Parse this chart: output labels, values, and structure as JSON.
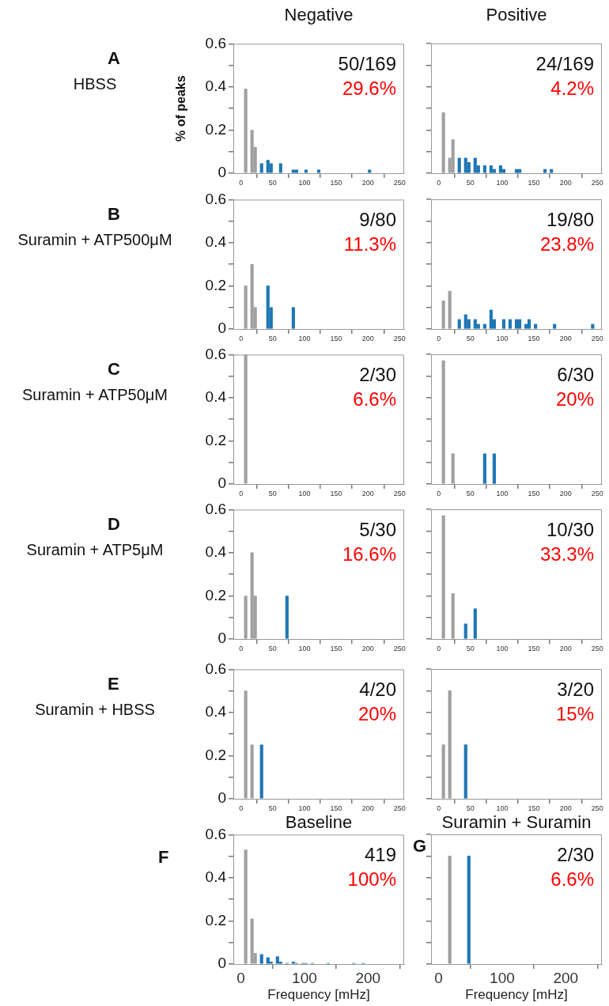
{
  "chart_data": [
    {
      "type": "bar",
      "title": "Negative",
      "subtitle": "A",
      "ylabel": "% of peaks",
      "annotations": [
        "HBSS",
        "50/169",
        "29.6%"
      ],
      "x": [
        7.5,
        17.5,
        22.5,
        32.5,
        42.5,
        47.5,
        62.5,
        82.5,
        87.5,
        102.5,
        122.5,
        202.5
      ],
      "values": [
        0.39,
        0.2,
        0.12,
        0.045,
        0.06,
        0.045,
        0.045,
        0.015,
        0.015,
        0.015,
        0.015,
        0.015
      ],
      "colors": [
        "#a0a0a0",
        "#a0a0a0",
        "#a0a0a0",
        "#1f77b4",
        "#1f77b4",
        "#1f77b4",
        "#1f77b4",
        "#1f77b4",
        "#1f77b4",
        "#1f77b4",
        "#1f77b4",
        "#1f77b4"
      ],
      "xlim": [
        -12,
        257
      ],
      "xticks": [
        0,
        50,
        100,
        150,
        200,
        250
      ],
      "ylim": [
        0,
        0.6
      ],
      "yticks": [
        0,
        {
          "value": 0.1,
          "label": null
        },
        0.2,
        {
          "value": 0.3,
          "label": null
        },
        0.4,
        {
          "value": 0.5,
          "label": null
        },
        0.6
      ]
    },
    {
      "type": "bar",
      "title": "Positive",
      "annotations": [
        "24/169",
        "4.2%"
      ],
      "x": [
        7.5,
        17.5,
        22.5,
        32.5,
        42.5,
        47.5,
        57.5,
        62.5,
        72.5,
        82.5,
        87.5,
        97.5,
        102.5,
        122.5,
        127.5,
        167.5,
        177.5
      ],
      "values": [
        0.28,
        0.07,
        0.155,
        0.07,
        0.07,
        0.05,
        0.07,
        0.035,
        0.035,
        0.035,
        0.018,
        0.035,
        0.018,
        0.018,
        0.018,
        0.018,
        0.018
      ],
      "colors": [
        "#a0a0a0",
        "#a0a0a0",
        "#a0a0a0",
        "#1f77b4",
        "#1f77b4",
        "#1f77b4",
        "#1f77b4",
        "#1f77b4",
        "#1f77b4",
        "#1f77b4",
        "#1f77b4",
        "#1f77b4",
        "#1f77b4",
        "#1f77b4",
        "#1f77b4",
        "#1f77b4",
        "#1f77b4"
      ],
      "xlim": [
        -12,
        257
      ],
      "xticks": [
        0,
        50,
        100,
        150,
        200,
        250
      ],
      "ylim": [
        0,
        0.6
      ],
      "yticks": [
        0,
        {
          "value": 0.1,
          "label": null
        },
        0.2,
        {
          "value": 0.3,
          "label": null
        },
        0.4,
        {
          "value": 0.5,
          "label": null
        },
        0.6
      ],
      "tick_labels": "x"
    },
    {
      "type": "bar",
      "subtitle": "B",
      "annotations": [
        "Suramin + ATP500μM",
        "9/80",
        "11.3%"
      ],
      "x": [
        7.5,
        17.5,
        22.5,
        42.5,
        47.5,
        82.5
      ],
      "values": [
        0.2,
        0.3,
        0.1,
        0.2,
        0.1,
        0.1
      ],
      "colors": [
        "#a0a0a0",
        "#a0a0a0",
        "#a0a0a0",
        "#1f77b4",
        "#1f77b4",
        "#1f77b4"
      ],
      "xlim": [
        -12,
        257
      ],
      "xticks": [
        0,
        50,
        100,
        150,
        200,
        250
      ],
      "ylim": [
        0,
        0.6
      ],
      "yticks": [
        0,
        {
          "value": 0.1,
          "label": null
        },
        0.2,
        {
          "value": 0.3,
          "label": null
        },
        0.4,
        {
          "value": 0.5,
          "label": null
        },
        0.6
      ]
    },
    {
      "type": "bar",
      "annotations": [
        "19/80",
        "23.8%"
      ],
      "x": [
        7.5,
        17.5,
        32.5,
        42.5,
        47.5,
        57.5,
        62.5,
        72.5,
        82.5,
        87.5,
        102.5,
        112.5,
        122.5,
        127.5,
        137.5,
        142.5,
        152.5,
        182.5,
        242.5
      ],
      "values": [
        0.13,
        0.175,
        0.044,
        0.066,
        0.044,
        0.044,
        0.022,
        0.022,
        0.088,
        0.044,
        0.044,
        0.044,
        0.044,
        0.044,
        0.022,
        0.044,
        0.022,
        0.022,
        0.022
      ],
      "colors": [
        "#a0a0a0",
        "#a0a0a0",
        "#1f77b4",
        "#1f77b4",
        "#1f77b4",
        "#1f77b4",
        "#1f77b4",
        "#1f77b4",
        "#1f77b4",
        "#1f77b4",
        "#1f77b4",
        "#1f77b4",
        "#1f77b4",
        "#1f77b4",
        "#1f77b4",
        "#1f77b4",
        "#1f77b4",
        "#1f77b4",
        "#1f77b4"
      ],
      "xlim": [
        -12,
        257
      ],
      "xticks": [
        0,
        50,
        100,
        150,
        200,
        250
      ],
      "ylim": [
        0,
        0.6
      ],
      "yticks": [
        0,
        {
          "value": 0.1,
          "label": null
        },
        0.2,
        {
          "value": 0.3,
          "label": null
        },
        0.4,
        {
          "value": 0.5,
          "label": null
        },
        0.6
      ],
      "tick_labels": "x"
    },
    {
      "type": "bar",
      "subtitle": "C",
      "annotations": [
        "Suramin + ATP50μM",
        "2/30",
        "6.6%"
      ],
      "x": [
        7.5
      ],
      "values": [
        0.6
      ],
      "colors": [
        "#a0a0a0"
      ],
      "xlim": [
        -12,
        257
      ],
      "xticks": [
        0,
        50,
        100,
        150,
        200,
        250
      ],
      "ylim": [
        0,
        0.6
      ],
      "yticks": [
        0,
        {
          "value": 0.1,
          "label": null
        },
        0.2,
        {
          "value": 0.3,
          "label": null
        },
        0.4,
        {
          "value": 0.5,
          "label": null
        },
        0.6
      ]
    },
    {
      "type": "bar",
      "annotations": [
        "6/30",
        "20%"
      ],
      "x": [
        7.5,
        22.5,
        72.5,
        87.5
      ],
      "values": [
        0.57,
        0.14,
        0.14,
        0.14
      ],
      "colors": [
        "#a0a0a0",
        "#a0a0a0",
        "#1f77b4",
        "#1f77b4"
      ],
      "xlim": [
        -12,
        257
      ],
      "xticks": [
        0,
        50,
        100,
        150,
        200,
        250
      ],
      "ylim": [
        0,
        0.6
      ],
      "yticks": [
        0,
        {
          "value": 0.1,
          "label": null
        },
        0.2,
        {
          "value": 0.3,
          "label": null
        },
        0.4,
        {
          "value": 0.5,
          "label": null
        },
        0.6
      ],
      "tick_labels": "x"
    },
    {
      "type": "bar",
      "subtitle": "D",
      "annotations": [
        "Suramin + ATP5μM",
        "5/30",
        "16.6%"
      ],
      "x": [
        7.5,
        17.5,
        22.5,
        72.5
      ],
      "values": [
        0.2,
        0.4,
        0.2,
        0.2
      ],
      "colors": [
        "#a0a0a0",
        "#a0a0a0",
        "#a0a0a0",
        "#1f77b4"
      ],
      "xlim": [
        -12,
        257
      ],
      "xticks": [
        0,
        50,
        100,
        150,
        200,
        250
      ],
      "ylim": [
        0,
        0.6
      ],
      "yticks": [
        0,
        {
          "value": 0.1,
          "label": null
        },
        0.2,
        {
          "value": 0.3,
          "label": null
        },
        0.4,
        {
          "value": 0.5,
          "label": null
        },
        0.6
      ]
    },
    {
      "type": "bar",
      "annotations": [
        "10/30",
        "33.3%"
      ],
      "x": [
        7.5,
        22.5,
        42.5,
        57.5
      ],
      "values": [
        0.57,
        0.21,
        0.07,
        0.14
      ],
      "colors": [
        "#a0a0a0",
        "#a0a0a0",
        "#1f77b4",
        "#1f77b4"
      ],
      "xlim": [
        -12,
        257
      ],
      "xticks": [
        0,
        50,
        100,
        150,
        200,
        250
      ],
      "ylim": [
        0,
        0.6
      ],
      "yticks": [
        0,
        {
          "value": 0.1,
          "label": null
        },
        0.2,
        {
          "value": 0.3,
          "label": null
        },
        0.4,
        {
          "value": 0.5,
          "label": null
        },
        0.6
      ],
      "tick_labels": "x"
    },
    {
      "type": "bar",
      "subtitle": "E",
      "annotations": [
        "Suramin + HBSS",
        "4/20",
        "20%"
      ],
      "x": [
        7.5,
        17.5,
        32.5
      ],
      "values": [
        0.5,
        0.25,
        0.25
      ],
      "colors": [
        "#a0a0a0",
        "#a0a0a0",
        "#1f77b4"
      ],
      "xlim": [
        -12,
        257
      ],
      "xticks": [
        0,
        50,
        100,
        150,
        200,
        250
      ],
      "ylim": [
        0,
        0.6
      ],
      "yticks": [
        0,
        {
          "value": 0.1,
          "label": null
        },
        0.2,
        {
          "value": 0.3,
          "label": null
        },
        0.4,
        {
          "value": 0.5,
          "label": null
        },
        0.6
      ]
    },
    {
      "type": "bar",
      "annotations": [
        "3/20",
        "15%"
      ],
      "x": [
        7.5,
        17.5,
        42.5
      ],
      "values": [
        0.25,
        0.5,
        0.25
      ],
      "colors": [
        "#a0a0a0",
        "#a0a0a0",
        "#1f77b4"
      ],
      "xlim": [
        -12,
        257
      ],
      "xticks": [
        0,
        50,
        100,
        150,
        200,
        250
      ],
      "ylim": [
        0,
        0.6
      ],
      "yticks": [
        0,
        {
          "value": 0.1,
          "label": null
        },
        0.2,
        {
          "value": 0.3,
          "label": null
        },
        0.4,
        {
          "value": 0.5,
          "label": null
        },
        0.6
      ],
      "tick_labels": "x"
    },
    {
      "type": "bar",
      "title": "Baseline",
      "subtitle": "F",
      "xlabel": "Frequency [mHz]",
      "annotations": [
        "419",
        "100%"
      ],
      "x": [
        7.5,
        17.5,
        22.5,
        32.5,
        42.5,
        47.5,
        57.5,
        62.5,
        72.5,
        82.5,
        87.5,
        97.5,
        102.5,
        112.5,
        137.5,
        177.5,
        192.5
      ],
      "values": [
        0.53,
        0.21,
        0.05,
        0.045,
        0.03,
        0.01,
        0.035,
        0.01,
        0.003,
        0.01,
        0.003,
        0.003,
        0.003,
        0.003,
        0.003,
        0.003,
        0.003
      ],
      "colors": [
        "#a0a0a0",
        "#a0a0a0",
        "#a0a0a0",
        "#1f77b4",
        "#1f77b4",
        "#1f77b4",
        "#1f77b4",
        "#1f77b4",
        "#1f77b4",
        "#1f77b4",
        "#1f77b4",
        "#1f77b4",
        "#1f77b4",
        "#1f77b4",
        "#1f77b4",
        "#1f77b4",
        "#1f77b4"
      ],
      "xlim": [
        -12,
        257
      ],
      "xticks": [
        0,
        100,
        200
      ],
      "ylim": [
        0,
        0.6
      ],
      "yticks": [
        0,
        {
          "value": 0.1,
          "label": null
        },
        0.2,
        {
          "value": 0.3,
          "label": null
        },
        0.4,
        {
          "value": 0.5,
          "label": null
        },
        0.6
      ]
    },
    {
      "type": "bar",
      "title": "Suramin + Suramin",
      "subtitle": "G",
      "xlabel": "Frequency [mHz]",
      "annotations": [
        "2/30",
        "6.6%"
      ],
      "x": [
        17.5,
        47.5
      ],
      "values": [
        0.5,
        0.5
      ],
      "colors": [
        "#a0a0a0",
        "#1f77b4"
      ],
      "xlim": [
        -12,
        257
      ],
      "xticks": [
        0,
        100,
        200
      ],
      "ylim": [
        0,
        0.6
      ],
      "yticks": [
        0,
        {
          "value": 0.1,
          "label": null
        },
        0.2,
        {
          "value": 0.3,
          "label": null
        },
        0.4,
        {
          "value": 0.5,
          "label": null
        },
        0.6
      ],
      "tick_labels": "x"
    }
  ]
}
